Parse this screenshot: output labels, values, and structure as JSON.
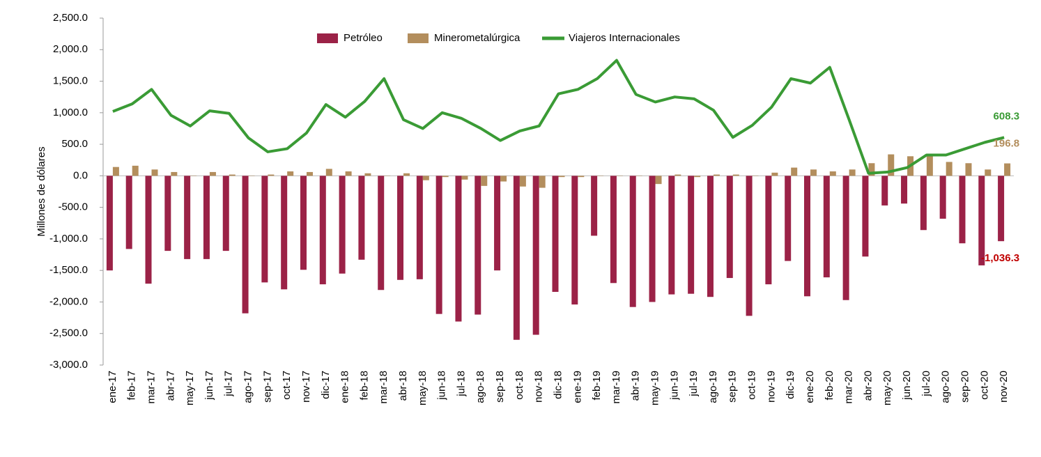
{
  "chart_data": {
    "type": "bar",
    "ylabel": "Millones de dólares",
    "categories": [
      "ene-17",
      "feb-17",
      "mar-17",
      "abr-17",
      "may-17",
      "jun-17",
      "jul-17",
      "ago-17",
      "sep-17",
      "oct-17",
      "nov-17",
      "dic-17",
      "ene-18",
      "feb-18",
      "mar-18",
      "abr-18",
      "may-18",
      "jun-18",
      "jul-18",
      "ago-18",
      "sep-18",
      "oct-18",
      "nov-18",
      "dic-18",
      "ene-19",
      "feb-19",
      "mar-19",
      "abr-19",
      "may-19",
      "jun-19",
      "jul-19",
      "ago-19",
      "sep-19",
      "oct-19",
      "nov-19",
      "dic-19",
      "ene-20",
      "feb-20",
      "mar-20",
      "abr-20",
      "may-20",
      "jun-20",
      "jul-20",
      "ago-20",
      "sep-20",
      "oct-20",
      "nov-20"
    ],
    "series": [
      {
        "name": "Petróleo",
        "type": "bar",
        "color": "#9b2247",
        "values": [
          -1500,
          -1160,
          -1710,
          -1190,
          -1320,
          -1320,
          -1190,
          -2180,
          -1690,
          -1800,
          -1490,
          -1720,
          -1550,
          -1330,
          -1810,
          -1650,
          -1640,
          -2190,
          -2310,
          -2200,
          -1500,
          -2600,
          -2520,
          -1840,
          -2040,
          -950,
          -1700,
          -2080,
          -2000,
          -1880,
          -1870,
          -1920,
          -1620,
          -2220,
          -1720,
          -1350,
          -1910,
          -1610,
          -1970,
          -1280,
          -470,
          -440,
          -860,
          -680,
          -1070,
          -1420,
          -1036.3
        ],
        "value_labels": [
          null,
          null,
          null,
          null,
          null,
          null,
          null,
          null,
          null,
          null,
          null,
          null,
          null,
          null,
          null,
          null,
          null,
          null,
          null,
          null,
          null,
          null,
          null,
          null,
          null,
          null,
          null,
          null,
          null,
          null,
          null,
          null,
          null,
          null,
          null,
          null,
          null,
          null,
          null,
          null,
          null,
          null,
          null,
          null,
          null,
          null,
          "-1,036.3"
        ]
      },
      {
        "name": "Minerometalúrgica",
        "type": "bar",
        "color": "#b38e5d",
        "values": [
          140,
          160,
          100,
          60,
          5,
          60,
          20,
          5,
          20,
          70,
          60,
          110,
          70,
          40,
          5,
          40,
          -70,
          -20,
          -60,
          -160,
          -90,
          -170,
          -190,
          -20,
          -20,
          5,
          5,
          5,
          -130,
          20,
          -20,
          20,
          20,
          5,
          50,
          130,
          100,
          70,
          100,
          200,
          340,
          310,
          320,
          220,
          200,
          100,
          196.8
        ],
        "value_labels": [
          null,
          null,
          null,
          null,
          null,
          null,
          null,
          null,
          null,
          null,
          null,
          null,
          null,
          null,
          null,
          null,
          null,
          null,
          null,
          null,
          null,
          null,
          null,
          null,
          null,
          null,
          null,
          null,
          null,
          null,
          null,
          null,
          null,
          null,
          null,
          null,
          null,
          null,
          null,
          null,
          null,
          null,
          null,
          null,
          null,
          null,
          "196.8"
        ]
      },
      {
        "name": "Viajeros Internacionales",
        "type": "line",
        "color": "#3a9b35",
        "values": [
          1020,
          1140,
          1370,
          960,
          790,
          1030,
          990,
          600,
          380,
          430,
          680,
          1130,
          930,
          1180,
          1540,
          890,
          750,
          1000,
          910,
          750,
          560,
          710,
          790,
          1300,
          1370,
          1540,
          1830,
          1290,
          1170,
          1250,
          1220,
          1040,
          610,
          800,
          1090,
          1540,
          1470,
          1720,
          890,
          40,
          60,
          130,
          330,
          330,
          430,
          530,
          608.3
        ],
        "value_labels": [
          null,
          null,
          null,
          null,
          null,
          null,
          null,
          null,
          null,
          null,
          null,
          null,
          null,
          null,
          null,
          null,
          null,
          null,
          null,
          null,
          null,
          null,
          null,
          null,
          null,
          null,
          null,
          null,
          null,
          null,
          null,
          null,
          null,
          null,
          null,
          null,
          null,
          null,
          null,
          null,
          null,
          null,
          null,
          null,
          null,
          null,
          "608.3"
        ]
      }
    ],
    "ylim": [
      -3000,
      2500
    ],
    "yticks": [
      {
        "value": 2500,
        "label": "2,500.0"
      },
      {
        "value": 2000,
        "label": "2,000.0"
      },
      {
        "value": 1500,
        "label": "1,500.0"
      },
      {
        "value": 1000,
        "label": "1,000.0"
      },
      {
        "value": 500,
        "label": "500.0"
      },
      {
        "value": 0,
        "label": "0.0"
      },
      {
        "value": -500,
        "label": "-500.0"
      },
      {
        "value": -1000,
        "label": "-1,000.0"
      },
      {
        "value": -1500,
        "label": "-1,500.0"
      },
      {
        "value": -2000,
        "label": "-2,000.0"
      },
      {
        "value": -2500,
        "label": "-2,500.0"
      },
      {
        "value": -3000,
        "label": "-3,000.0"
      }
    ],
    "legend": "top",
    "grid": false
  }
}
